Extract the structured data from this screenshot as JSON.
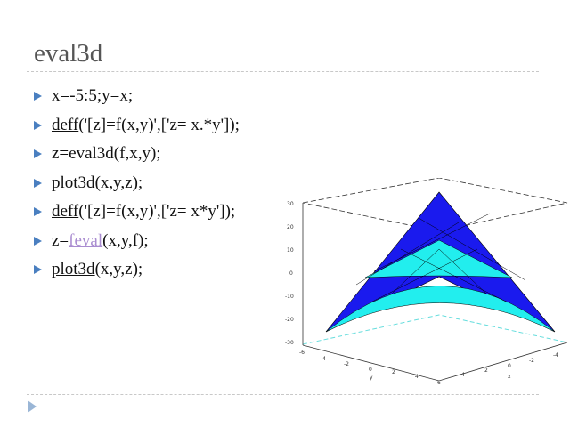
{
  "slide": {
    "title": "eval3d",
    "bullets": [
      {
        "pre": "",
        "code": "",
        "text": "x=-5:5;y=x;"
      },
      {
        "pre": "",
        "code": "deff",
        "text": "('[z]=f(x,y)',['z= x.*y']);"
      },
      {
        "pre": "",
        "code": "",
        "text": "z=eval3d(f,x,y);"
      },
      {
        "pre": "",
        "code": "plot3d",
        "text": "(x,y,z);"
      },
      {
        "pre": "",
        "code": "deff",
        "text": "('[z]=f(x,y)',['z= x*y']);"
      },
      {
        "pre": "z=",
        "link": "feval",
        "text": "(x,y,f);"
      },
      {
        "pre": "",
        "code": "plot3d",
        "text": "(x,y,z);"
      }
    ]
  },
  "plot": {
    "z_ticks": [
      "30",
      "20",
      "10",
      "0",
      "-10",
      "-20",
      "-30"
    ],
    "y_ticks": [
      "-6",
      "-4",
      "-2",
      "0",
      "2",
      "4",
      "6"
    ],
    "x_ticks": [
      "4",
      "2",
      "0",
      "-2",
      "-4"
    ],
    "y_label": "y",
    "x_label": "x",
    "colors": {
      "surface_top": "#1a1aee",
      "surface_under": "#22eeee"
    }
  }
}
